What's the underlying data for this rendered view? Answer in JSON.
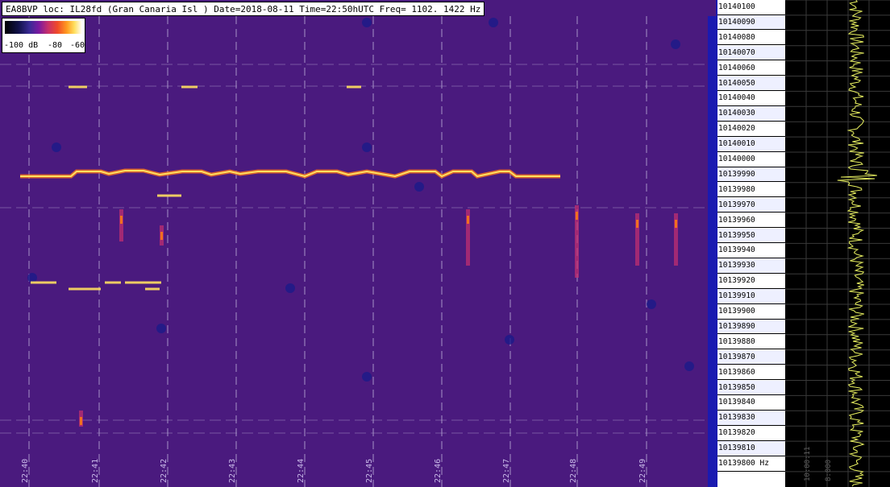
{
  "header": {
    "text": "EA8BVP loc: IL28fd (Gran Canaria Isl ) Date=2018-08-11 Time=22:50hUTC Freq= 1102.   1422 Hz"
  },
  "legend": {
    "label_min": "-100 dB",
    "label_mid": "-80",
    "label_max": "-60"
  },
  "time_ticks": [
    "22:40",
    "22:41",
    "22:42",
    "22:43",
    "22:44",
    "22:45",
    "22:46",
    "22:47",
    "22:48",
    "22:49"
  ],
  "freq_labels": [
    "10140100",
    "10140090",
    "10140080",
    "10140070",
    "10140060",
    "10140050",
    "10140040",
    "10140030",
    "10140020",
    "10140010",
    "10140000",
    "10139990",
    "10139980",
    "10139970",
    "10139960",
    "10139950",
    "10139940",
    "10139930",
    "10139920",
    "10139910",
    "10139900",
    "10139890",
    "10139880",
    "10139870",
    "10139860",
    "10139850",
    "10139840",
    "10139830",
    "10139820",
    "10139810",
    "10139800 Hz"
  ],
  "spectrum": {
    "label_left": "10:00:11",
    "label_mid": "8:000",
    "trace_color": "#e8f060",
    "grid_color": "#3a3a3a"
  },
  "colors": {
    "background": "#4a1a7e",
    "grid": "#b0a0d0",
    "signal_hot": "#ffe060",
    "signal_warm": "#f07020",
    "signal_mid": "#c83070"
  }
}
